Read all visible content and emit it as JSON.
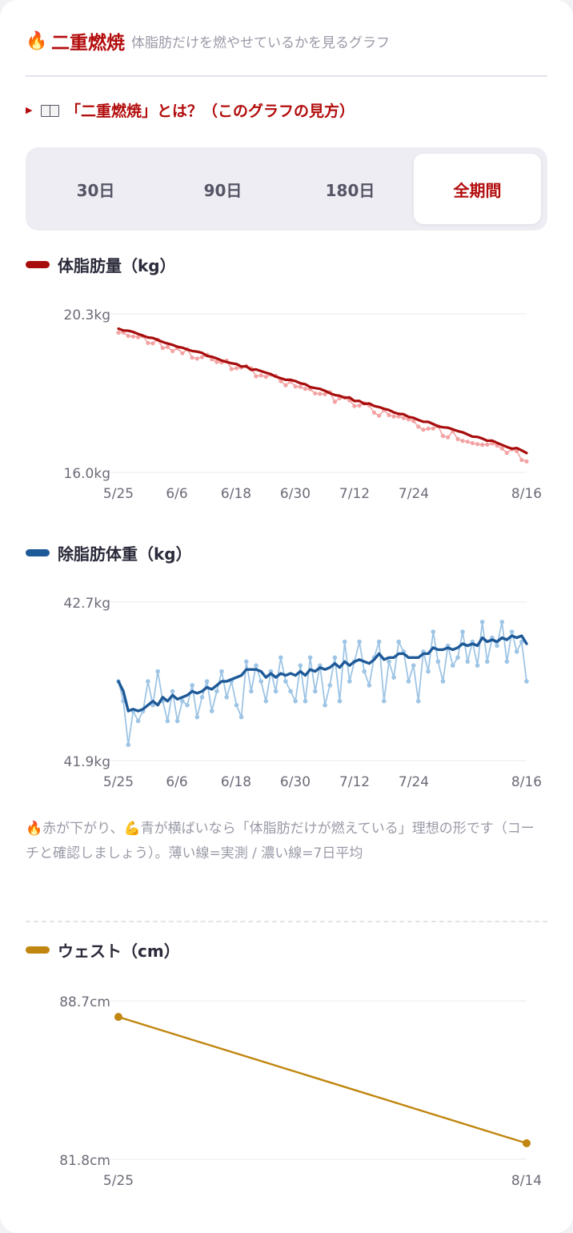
{
  "header": {
    "icon": "fire-icon",
    "title": "二重燃焼",
    "subtitle": "体脂肪だけを燃やせているかを見るグラフ"
  },
  "explain": {
    "icons": [
      "triangle-right-icon",
      "open-book-icon"
    ],
    "label": "「二重燃焼」とは？（このグラフの見方）"
  },
  "tabs": [
    {
      "label": "30日",
      "active": false
    },
    {
      "label": "90日",
      "active": false
    },
    {
      "label": "180日",
      "active": false
    },
    {
      "label": "全期間",
      "active": true
    }
  ],
  "legends": {
    "fat": "体脂肪量（kg）",
    "lean": "除脂肪体重（kg）",
    "waist": "ウェスト（cm）"
  },
  "note": {
    "icons": [
      "fire-icon",
      "flexed-biceps-icon"
    ],
    "text": "🔥赤が下がり、💪青が横ばいなら「体脂肪だけが燃えている」理想の形です（コーチと確認しましょう）。薄い線=実測 / 濃い線=7日平均"
  },
  "colors": {
    "accent": "#b30c0c",
    "fat_avg": "#a80d0d",
    "fat_raw": "#f3a3a3",
    "lean_avg": "#1e5a98",
    "lean_raw": "#9ec5e5",
    "waist": "#c0860f",
    "grid": "#ebebf0",
    "axis_text": "#6b6b78"
  },
  "chart_data": [
    {
      "type": "line",
      "name": "fat",
      "ytick_labels": [
        "20.3kg",
        "16.0kg"
      ],
      "xtick_labels": [
        "5/25",
        "6/6",
        "6/18",
        "6/30",
        "7/12",
        "7/24",
        "8/16"
      ],
      "ylim": [
        16.0,
        20.3
      ],
      "series": [
        {
          "role": "raw",
          "start": 19.85,
          "end": 16.4,
          "points": 84,
          "noise": 0.12
        },
        {
          "role": "avg",
          "start": 19.9,
          "end": 16.55,
          "points": 84,
          "noise": 0.03
        }
      ]
    },
    {
      "type": "line",
      "name": "lean",
      "ytick_labels": [
        "42.7kg",
        "41.9kg"
      ],
      "xtick_labels": [
        "5/25",
        "6/6",
        "6/18",
        "6/30",
        "7/12",
        "7/24",
        "8/16"
      ],
      "ylim": [
        41.9,
        42.7
      ],
      "series": [
        {
          "role": "raw",
          "values": [
            42.3,
            42.2,
            41.98,
            42.15,
            42.1,
            42.15,
            42.3,
            42.18,
            42.35,
            42.2,
            42.1,
            42.25,
            42.1,
            42.2,
            42.18,
            42.28,
            42.12,
            42.22,
            42.3,
            42.15,
            42.25,
            42.35,
            42.22,
            42.3,
            42.18,
            42.12,
            42.4,
            42.25,
            42.38,
            42.3,
            42.2,
            42.35,
            42.25,
            42.42,
            42.3,
            42.25,
            42.2,
            42.38,
            42.2,
            42.42,
            42.25,
            42.38,
            42.18,
            42.28,
            42.42,
            42.2,
            42.5,
            42.3,
            42.4,
            42.5,
            42.35,
            42.28,
            42.42,
            42.5,
            42.2,
            42.4,
            42.32,
            42.5,
            42.45,
            42.3,
            42.38,
            42.2,
            42.45,
            42.35,
            42.55,
            42.4,
            42.3,
            42.48,
            42.38,
            42.42,
            42.55,
            42.4,
            42.5,
            42.38,
            42.6,
            42.4,
            42.52,
            42.48,
            42.6,
            42.4,
            42.55,
            42.45,
            42.5,
            42.3
          ],
          "min": 41.98,
          "max": 42.6
        },
        {
          "role": "avg",
          "values": [
            42.3,
            42.25,
            42.15,
            42.16,
            42.15,
            42.16,
            42.18,
            42.2,
            42.18,
            42.22,
            42.2,
            42.23,
            42.21,
            42.22,
            42.23,
            42.25,
            42.24,
            42.25,
            42.27,
            42.26,
            42.28,
            42.3,
            42.3,
            42.31,
            42.32,
            42.33,
            42.36,
            42.36,
            42.36,
            42.35,
            42.32,
            42.34,
            42.32,
            42.34,
            42.33,
            42.34,
            42.33,
            42.35,
            42.33,
            42.36,
            42.35,
            42.37,
            42.36,
            42.37,
            42.39,
            42.37,
            42.4,
            42.38,
            42.4,
            42.41,
            42.4,
            42.39,
            42.41,
            42.44,
            42.41,
            42.42,
            42.42,
            42.44,
            42.44,
            42.42,
            42.42,
            42.42,
            42.44,
            42.44,
            42.47,
            42.46,
            42.46,
            42.47,
            42.46,
            42.47,
            42.49,
            42.48,
            42.49,
            42.48,
            42.52,
            42.5,
            42.51,
            42.5,
            42.52,
            42.51,
            42.53,
            42.52,
            42.53,
            42.49
          ],
          "min": 42.15,
          "max": 42.53
        }
      ]
    },
    {
      "type": "line",
      "name": "waist",
      "ytick_labels": [
        "88.7cm",
        "81.8cm"
      ],
      "xtick_labels": [
        "5/25",
        "8/14"
      ],
      "ylim": [
        81.8,
        88.7
      ],
      "series": [
        {
          "role": "measured",
          "x": [
            "5/25",
            "8/14"
          ],
          "values": [
            88.0,
            82.5
          ]
        }
      ]
    }
  ]
}
